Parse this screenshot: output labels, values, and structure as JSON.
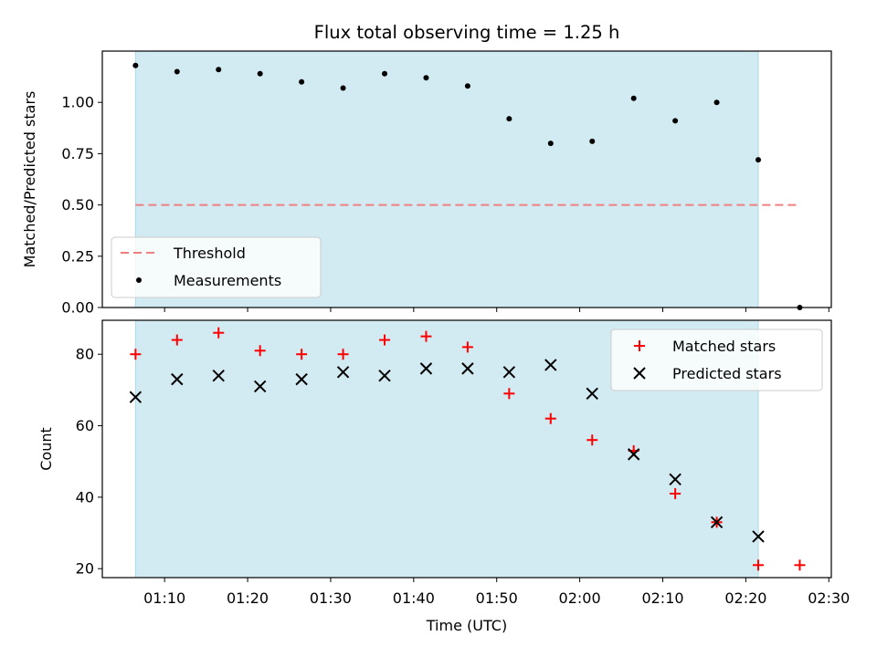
{
  "chart_data": {
    "type": "scatter",
    "title": "Flux total observing time = 1.25 h",
    "xlabel": "Time (UTC)",
    "x_ticks": [
      "01:10",
      "01:20",
      "01:30",
      "01:40",
      "01:50",
      "02:00",
      "02:10",
      "02:20",
      "02:30"
    ],
    "x_tick_minutes": [
      70,
      80,
      90,
      100,
      110,
      120,
      130,
      140,
      150
    ],
    "xlim_minutes": [
      62.5,
      150.3
    ],
    "observing_window_minutes": [
      66.5,
      141.5
    ],
    "observing_window_color": "#add8e6",
    "times_minutes": [
      66.5,
      71.5,
      76.5,
      81.5,
      86.5,
      91.5,
      96.5,
      101.5,
      106.5,
      111.5,
      116.5,
      121.5,
      126.5,
      131.5,
      136.5,
      141.5,
      146.5
    ],
    "top_panel": {
      "ylabel": "Matched/Predicted stars",
      "ylim": [
        0.0,
        1.25
      ],
      "y_ticks": [
        "0.00",
        "0.25",
        "0.50",
        "0.75",
        "1.00"
      ],
      "y_tick_values": [
        0.0,
        0.25,
        0.5,
        0.75,
        1.0
      ],
      "threshold": {
        "name": "Threshold",
        "value": 0.5,
        "x_start": 66.5,
        "x_end": 146.5,
        "color": "#f08080"
      },
      "measurements": {
        "name": "Measurements",
        "color": "#000000",
        "values": [
          1.18,
          1.15,
          1.16,
          1.14,
          1.1,
          1.07,
          1.14,
          1.12,
          1.08,
          0.92,
          0.8,
          0.81,
          1.02,
          0.91,
          1.0,
          0.72,
          0.0
        ]
      },
      "legend_position": "lower-left"
    },
    "bottom_panel": {
      "ylabel": "Count",
      "ylim": [
        17.5,
        89.5
      ],
      "y_ticks": [
        "20",
        "40",
        "60",
        "80"
      ],
      "y_tick_values": [
        20,
        40,
        60,
        80
      ],
      "series": [
        {
          "name": "Matched stars",
          "marker": "+",
          "color": "#ff0000",
          "values": [
            80,
            84,
            86,
            81,
            80,
            80,
            84,
            85,
            82,
            69,
            62,
            56,
            53,
            41,
            33,
            21,
            21
          ]
        },
        {
          "name": "Predicted stars",
          "marker": "x",
          "color": "#000000",
          "values": [
            68,
            73,
            74,
            71,
            73,
            75,
            74,
            76,
            76,
            75,
            77,
            69,
            52,
            45,
            33,
            29,
            null
          ]
        }
      ],
      "legend_position": "upper-right"
    }
  }
}
